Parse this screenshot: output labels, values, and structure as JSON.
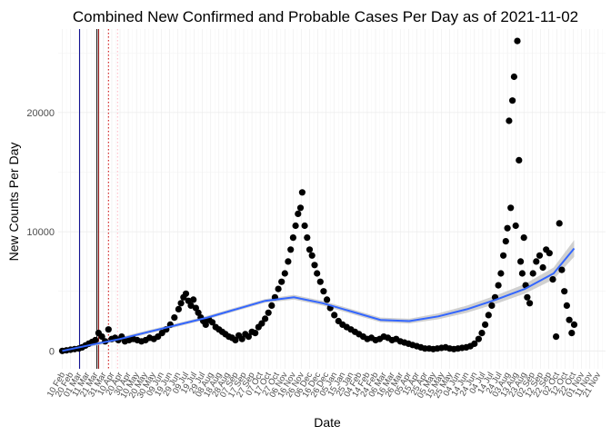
{
  "chart_data": {
    "type": "scatter",
    "title": "Combined New Confirmed and Probable Cases Per Day as of 2021-11-02",
    "xlabel": "Date",
    "ylabel": "New Counts Per Day",
    "xlim": [
      "2020-02-05",
      "2021-11-30"
    ],
    "ylim": [
      -1500,
      27000
    ],
    "y_ticks": [
      0,
      10000,
      20000
    ],
    "x_tick_labels": [
      "10 Feb",
      "20 Feb",
      "01 Mar",
      "11 Mar",
      "21 Mar",
      "31 Mar",
      "10 Apr",
      "20 Apr",
      "30 Apr",
      "10 May",
      "20 May",
      "30 May",
      "09 Jun",
      "19 Jun",
      "29 Jun",
      "09 Jul",
      "19 Jul",
      "29 Jul",
      "08 Aug",
      "18 Aug",
      "28 Aug",
      "07 Sep",
      "17 Sep",
      "27 Sep",
      "07 Oct",
      "17 Oct",
      "27 Oct",
      "06 Nov",
      "16 Nov",
      "26 Nov",
      "06 Dec",
      "16 Dec",
      "26 Dec",
      "05 Jan",
      "15 Jan",
      "25 Jan",
      "04 Feb",
      "14 Feb",
      "24 Feb",
      "06 Mar",
      "16 Mar",
      "26 Mar",
      "05 Apr",
      "15 Apr",
      "25 Apr",
      "05 May",
      "15 May",
      "25 May",
      "04 Jun",
      "14 Jun",
      "24 Jun",
      "04 Jul",
      "14 Jul",
      "24 Jul",
      "03 Aug",
      "13 Aug",
      "23 Aug",
      "02 Sep",
      "12 Sep",
      "22 Sep",
      "02 Oct",
      "12 Oct",
      "22 Oct",
      "01 Nov",
      "11 Nov",
      "21 Nov"
    ],
    "grid": true,
    "vertical_lines": [
      {
        "date": "2020-03-02",
        "color": "#00008b",
        "style": "solid"
      },
      {
        "date": "2020-03-23",
        "color": "#000000",
        "style": "solid"
      },
      {
        "date": "2020-03-25",
        "color": "#8b0000",
        "style": "solid"
      },
      {
        "date": "2020-04-06",
        "color": "#cc0000",
        "style": "dotted"
      },
      {
        "date": "2020-04-17",
        "color": "#ffb6c1",
        "style": "dotted"
      }
    ],
    "series": [
      {
        "marker_color": "#000000",
        "points": [
          [
            "2020-02-10",
            0
          ],
          [
            "2020-02-15",
            50
          ],
          [
            "2020-02-20",
            100
          ],
          [
            "2020-02-25",
            150
          ],
          [
            "2020-03-01",
            200
          ],
          [
            "2020-03-05",
            300
          ],
          [
            "2020-03-09",
            450
          ],
          [
            "2020-03-13",
            600
          ],
          [
            "2020-03-17",
            750
          ],
          [
            "2020-03-21",
            900
          ],
          [
            "2020-03-25",
            1500
          ],
          [
            "2020-03-29",
            1200
          ],
          [
            "2020-04-02",
            800
          ],
          [
            "2020-04-06",
            1800
          ],
          [
            "2020-04-10",
            1000
          ],
          [
            "2020-04-14",
            1100
          ],
          [
            "2020-04-18",
            900
          ],
          [
            "2020-04-22",
            1200
          ],
          [
            "2020-04-26",
            800
          ],
          [
            "2020-05-01",
            900
          ],
          [
            "2020-05-06",
            1000
          ],
          [
            "2020-05-11",
            900
          ],
          [
            "2020-05-16",
            800
          ],
          [
            "2020-05-21",
            900
          ],
          [
            "2020-05-26",
            1100
          ],
          [
            "2020-05-31",
            1000
          ],
          [
            "2020-06-05",
            1200
          ],
          [
            "2020-06-10",
            1500
          ],
          [
            "2020-06-15",
            1800
          ],
          [
            "2020-06-20",
            2200
          ],
          [
            "2020-06-25",
            2800
          ],
          [
            "2020-06-30",
            3500
          ],
          [
            "2020-07-03",
            4000
          ],
          [
            "2020-07-06",
            4500
          ],
          [
            "2020-07-09",
            4800
          ],
          [
            "2020-07-12",
            4200
          ],
          [
            "2020-07-15",
            3800
          ],
          [
            "2020-07-18",
            4300
          ],
          [
            "2020-07-21",
            3600
          ],
          [
            "2020-07-24",
            3200
          ],
          [
            "2020-07-27",
            2800
          ],
          [
            "2020-07-30",
            2500
          ],
          [
            "2020-08-02",
            2200
          ],
          [
            "2020-08-06",
            2600
          ],
          [
            "2020-08-10",
            2400
          ],
          [
            "2020-08-14",
            2000
          ],
          [
            "2020-08-18",
            1800
          ],
          [
            "2020-08-22",
            1600
          ],
          [
            "2020-08-26",
            1400
          ],
          [
            "2020-08-30",
            1200
          ],
          [
            "2020-09-03",
            1100
          ],
          [
            "2020-09-07",
            900
          ],
          [
            "2020-09-11",
            1300
          ],
          [
            "2020-09-15",
            1000
          ],
          [
            "2020-09-19",
            1400
          ],
          [
            "2020-09-23",
            1200
          ],
          [
            "2020-09-27",
            1600
          ],
          [
            "2020-10-01",
            1500
          ],
          [
            "2020-10-05",
            2000
          ],
          [
            "2020-10-09",
            2300
          ],
          [
            "2020-10-13",
            2700
          ],
          [
            "2020-10-17",
            3200
          ],
          [
            "2020-10-21",
            3800
          ],
          [
            "2020-10-25",
            4500
          ],
          [
            "2020-10-29",
            5200
          ],
          [
            "2020-11-02",
            5800
          ],
          [
            "2020-11-06",
            6500
          ],
          [
            "2020-11-10",
            7500
          ],
          [
            "2020-11-13",
            8500
          ],
          [
            "2020-11-16",
            9500
          ],
          [
            "2020-11-19",
            10500
          ],
          [
            "2020-11-22",
            11500
          ],
          [
            "2020-11-25",
            12000
          ],
          [
            "2020-11-27",
            13300
          ],
          [
            "2020-11-30",
            10500
          ],
          [
            "2020-12-03",
            9500
          ],
          [
            "2020-12-06",
            8500
          ],
          [
            "2020-12-09",
            8000
          ],
          [
            "2020-12-12",
            7200
          ],
          [
            "2020-12-15",
            6500
          ],
          [
            "2020-12-19",
            5800
          ],
          [
            "2020-12-23",
            5000
          ],
          [
            "2020-12-27",
            4300
          ],
          [
            "2020-12-31",
            3600
          ],
          [
            "2021-01-05",
            3000
          ],
          [
            "2021-01-10",
            2500
          ],
          [
            "2021-01-15",
            2200
          ],
          [
            "2021-01-20",
            2000
          ],
          [
            "2021-01-25",
            1800
          ],
          [
            "2021-01-30",
            1600
          ],
          [
            "2021-02-04",
            1400
          ],
          [
            "2021-02-09",
            1200
          ],
          [
            "2021-02-14",
            1000
          ],
          [
            "2021-02-19",
            1100
          ],
          [
            "2021-02-24",
            900
          ],
          [
            "2021-03-01",
            1000
          ],
          [
            "2021-03-06",
            1200
          ],
          [
            "2021-03-11",
            1100
          ],
          [
            "2021-03-16",
            900
          ],
          [
            "2021-03-21",
            1000
          ],
          [
            "2021-03-26",
            800
          ],
          [
            "2021-03-31",
            700
          ],
          [
            "2021-04-05",
            600
          ],
          [
            "2021-04-10",
            500
          ],
          [
            "2021-04-15",
            400
          ],
          [
            "2021-04-20",
            300
          ],
          [
            "2021-04-25",
            200
          ],
          [
            "2021-04-30",
            200
          ],
          [
            "2021-05-05",
            150
          ],
          [
            "2021-05-10",
            200
          ],
          [
            "2021-05-15",
            250
          ],
          [
            "2021-05-20",
            300
          ],
          [
            "2021-05-25",
            200
          ],
          [
            "2021-05-30",
            150
          ],
          [
            "2021-06-04",
            200
          ],
          [
            "2021-06-09",
            250
          ],
          [
            "2021-06-14",
            300
          ],
          [
            "2021-06-19",
            400
          ],
          [
            "2021-06-24",
            600
          ],
          [
            "2021-06-29",
            1000
          ],
          [
            "2021-07-03",
            1500
          ],
          [
            "2021-07-07",
            2200
          ],
          [
            "2021-07-11",
            3000
          ],
          [
            "2021-07-15",
            3800
          ],
          [
            "2021-07-19",
            4500
          ],
          [
            "2021-07-23",
            5500
          ],
          [
            "2021-07-26",
            6500
          ],
          [
            "2021-07-29",
            8000
          ],
          [
            "2021-08-01",
            9200
          ],
          [
            "2021-08-03",
            10300
          ],
          [
            "2021-08-05",
            19300
          ],
          [
            "2021-08-07",
            12000
          ],
          [
            "2021-08-09",
            21000
          ],
          [
            "2021-08-11",
            23000
          ],
          [
            "2021-08-13",
            10500
          ],
          [
            "2021-08-15",
            26000
          ],
          [
            "2021-08-17",
            16000
          ],
          [
            "2021-08-19",
            7500
          ],
          [
            "2021-08-21",
            6500
          ],
          [
            "2021-08-23",
            9500
          ],
          [
            "2021-08-25",
            5500
          ],
          [
            "2021-08-27",
            4500
          ],
          [
            "2021-08-30",
            4000
          ],
          [
            "2021-09-03",
            6500
          ],
          [
            "2021-09-07",
            7500
          ],
          [
            "2021-09-11",
            8000
          ],
          [
            "2021-09-15",
            7000
          ],
          [
            "2021-09-19",
            8500
          ],
          [
            "2021-09-23",
            8200
          ],
          [
            "2021-09-27",
            6000
          ],
          [
            "2021-10-01",
            1200
          ],
          [
            "2021-10-05",
            10700
          ],
          [
            "2021-10-08",
            6800
          ],
          [
            "2021-10-11",
            5000
          ],
          [
            "2021-10-14",
            3800
          ],
          [
            "2021-10-17",
            2600
          ],
          [
            "2021-10-20",
            1500
          ],
          [
            "2021-10-23",
            2200
          ]
        ]
      }
    ],
    "smooth": {
      "line_color": "#3366ff",
      "band_color": "#c8c8c8",
      "points": [
        [
          "2020-02-10",
          0
        ],
        [
          "2020-03-15",
          500
        ],
        [
          "2020-04-20",
          1000
        ],
        [
          "2020-05-25",
          1600
        ],
        [
          "2020-06-30",
          2200
        ],
        [
          "2020-08-04",
          2800
        ],
        [
          "2020-09-08",
          3500
        ],
        [
          "2020-10-13",
          4200
        ],
        [
          "2020-11-17",
          4500
        ],
        [
          "2020-12-22",
          4000
        ],
        [
          "2021-01-26",
          3300
        ],
        [
          "2021-03-02",
          2600
        ],
        [
          "2021-04-06",
          2500
        ],
        [
          "2021-05-11",
          2900
        ],
        [
          "2021-06-15",
          3500
        ],
        [
          "2021-07-20",
          4300
        ],
        [
          "2021-08-24",
          5200
        ],
        [
          "2021-09-28",
          6500
        ],
        [
          "2021-10-23",
          8600
        ]
      ],
      "band_halfwidth": [
        150,
        150,
        150,
        150,
        150,
        150,
        150,
        150,
        200,
        200,
        200,
        200,
        200,
        250,
        300,
        350,
        400,
        500,
        700
      ]
    }
  }
}
